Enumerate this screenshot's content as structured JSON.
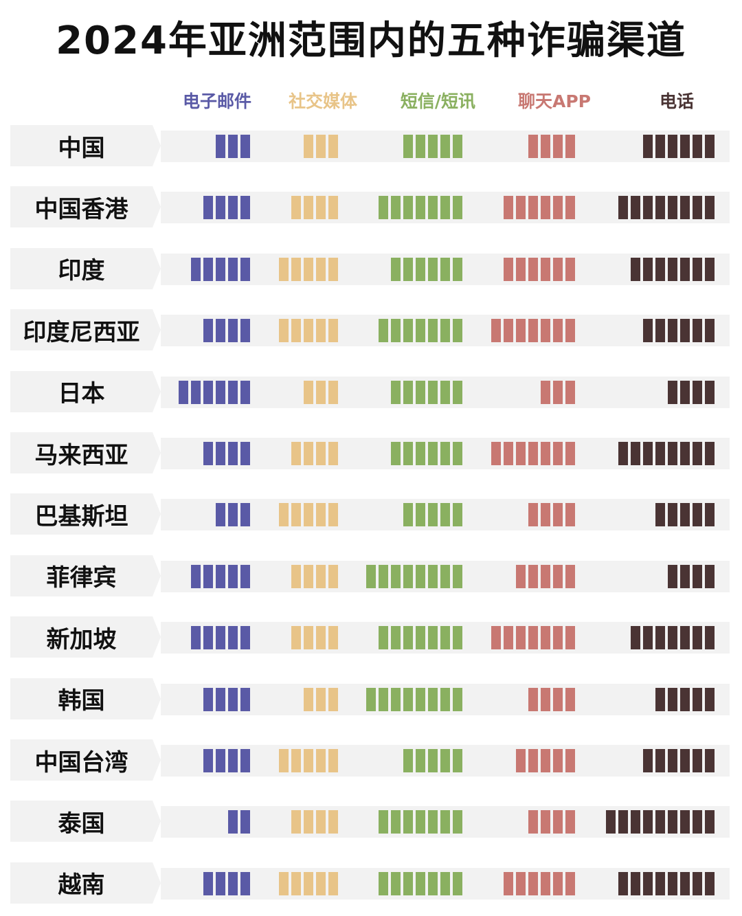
{
  "chart_data": {
    "type": "bar",
    "title": "2024年亚洲范围内的五种诈骗渠道",
    "categories": [
      "中国",
      "中国香港",
      "印度",
      "印度尼西亚",
      "日本",
      "马来西亚",
      "巴基斯坦",
      "菲律宾",
      "新加坡",
      "韩国",
      "中国台湾",
      "泰国",
      "越南"
    ],
    "series": [
      {
        "name": "电子邮件",
        "color": "#5a5aa6",
        "values": [
          3,
          4,
          5,
          4,
          6,
          4,
          3,
          5,
          5,
          4,
          4,
          2,
          4
        ]
      },
      {
        "name": "社交媒体",
        "color": "#e8c488",
        "values": [
          3,
          4,
          5,
          5,
          3,
          4,
          5,
          4,
          4,
          3,
          5,
          4,
          5
        ]
      },
      {
        "name": "短信/短讯",
        "color": "#8ab060",
        "values": [
          5,
          7,
          6,
          7,
          6,
          6,
          5,
          8,
          7,
          8,
          5,
          7,
          7
        ]
      },
      {
        "name": "聊天APP",
        "color": "#c87872",
        "values": [
          4,
          6,
          6,
          7,
          3,
          7,
          4,
          5,
          7,
          4,
          5,
          4,
          6
        ]
      },
      {
        "name": "电话",
        "color": "#4a3434",
        "values": [
          6,
          8,
          7,
          6,
          4,
          8,
          5,
          4,
          7,
          5,
          6,
          9,
          8
        ]
      }
    ]
  }
}
